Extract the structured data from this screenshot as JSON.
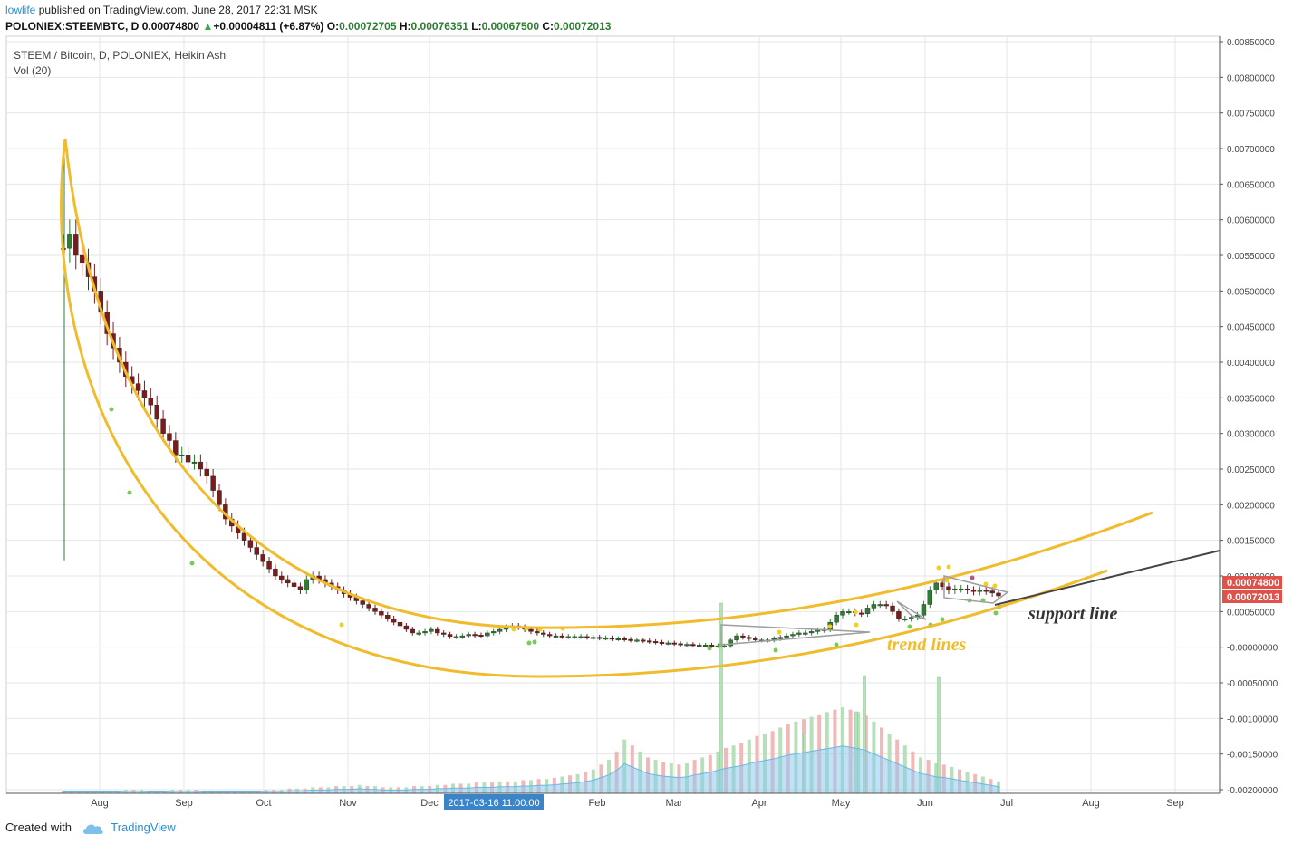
{
  "header": {
    "user": "lowlife",
    "published": "published on TradingView.com, June 28, 2017 22:31 MSK",
    "symbol": "POLONIEX:STEEMBTC, D",
    "last": "0.00074800",
    "change": "+0.00004811 (+6.87%)",
    "o_label": "O:",
    "o": "0.00072705",
    "h_label": "H:",
    "h": "0.00076351",
    "l_label": "L:",
    "l": "0.00067500",
    "c_label": "C:",
    "c": "0.00072013"
  },
  "legend": {
    "title": "STEEM / Bitcoin, D, POLONIEX, Heikin Ashi",
    "volume": "Vol (20)"
  },
  "footer": {
    "created_with": "Created with",
    "brand": "TradingView"
  },
  "colors": {
    "up": "#2e7d32",
    "down": "#7a1c1c",
    "trend": "#f0bc2e",
    "support": "#444444",
    "grid": "#e6e6e6",
    "price_tag": "#e0514a",
    "crosshair_tag": "#3c84c8",
    "volume_up": "#b7dfb9",
    "volume_down": "#f1b8b8",
    "volume_ma": "#8ec9ee"
  },
  "chart_data": {
    "type": "candlestick",
    "title": "STEEM / Bitcoin, D, POLONIEX, Heikin Ashi",
    "x_ticks": [
      "Aug",
      "Sep",
      "Oct",
      "Nov",
      "Dec",
      "2017-03-16 11:00:00",
      "Feb",
      "Mar",
      "Apr",
      "May",
      "Jun",
      "Jul",
      "Aug",
      "Sep"
    ],
    "y_ticks": [
      "0.00850000",
      "0.00800000",
      "0.00750000",
      "0.00700000",
      "0.00650000",
      "0.00600000",
      "0.00550000",
      "0.00500000",
      "0.00450000",
      "0.00400000",
      "0.00350000",
      "0.00300000",
      "0.00250000",
      "0.00200000",
      "0.00150000",
      "0.00100000",
      "0.00050000",
      "-0.00000000",
      "-0.00050000",
      "-0.00100000",
      "-0.00150000",
      "-0.00200000"
    ],
    "ylim": [
      -0.002,
      0.0085
    ],
    "price_tags": [
      "0.00074800",
      "0.00072013"
    ],
    "crosshair_label": "2017-03-16 11:00:00",
    "annotations": [
      "support line",
      "trend lines"
    ],
    "series": [
      {
        "name": "Price",
        "values": [
          0.0056,
          0.0058,
          0.0055,
          0.0054,
          0.0052,
          0.005,
          0.0047,
          0.0044,
          0.0042,
          0.004,
          0.0038,
          0.0037,
          0.0036,
          0.0035,
          0.0034,
          0.0032,
          0.003,
          0.0029,
          0.0027,
          0.0027,
          0.0026,
          0.0026,
          0.0025,
          0.0024,
          0.0022,
          0.002,
          0.0018,
          0.0017,
          0.0016,
          0.0015,
          0.0014,
          0.0013,
          0.0012,
          0.0011,
          0.001,
          0.00095,
          0.0009,
          0.00085,
          0.0008,
          0.00095,
          0.001,
          0.00095,
          0.0009,
          0.00085,
          0.0008,
          0.00075,
          0.0007,
          0.00065,
          0.0006,
          0.00055,
          0.0005,
          0.00045,
          0.0004,
          0.00035,
          0.0003,
          0.00025,
          0.0002,
          0.0002,
          0.00022,
          0.00025,
          0.0002,
          0.00018,
          0.00015,
          0.00015,
          0.00016,
          0.00018,
          0.00017,
          0.00016,
          0.0002,
          0.00022,
          0.00025,
          0.00028,
          0.0003,
          0.00028,
          0.00025,
          0.00022,
          0.0002,
          0.00018,
          0.00016,
          0.00016,
          0.00015,
          0.00015,
          0.00015,
          0.00015,
          0.00014,
          0.00014,
          0.00013,
          0.00013,
          0.00012,
          0.00012,
          0.00011,
          0.0001,
          0.0001,
          9e-05,
          8e-05,
          7e-05,
          6e-05,
          6e-05,
          5e-05,
          4e-05,
          4e-05,
          3e-05,
          3e-05,
          3e-05,
          2e-05,
          2e-05,
          2e-05,
          0.0001,
          0.00016,
          0.00014,
          0.00012,
          0.0001,
          0.0001,
          0.0001,
          0.00012,
          0.00014,
          0.00016,
          0.00018,
          0.0002,
          0.0002,
          0.00022,
          0.00024,
          0.00025,
          0.00035,
          0.00045,
          0.0005,
          0.0005,
          0.00048,
          0.00047,
          0.00055,
          0.0006,
          0.0006,
          0.00058,
          0.0005,
          0.0004,
          0.0004,
          0.00042,
          0.00045,
          0.0006,
          0.0008,
          0.0009,
          0.00085,
          0.0008,
          0.00082,
          0.00082,
          0.0008,
          0.00078,
          0.0008,
          0.00079,
          0.00076,
          0.00072
        ]
      }
    ],
    "volume": [
      2,
      2,
      2,
      2,
      2,
      2,
      2,
      2,
      3,
      3,
      3,
      2,
      2,
      2,
      3,
      3,
      3,
      3,
      2,
      2,
      2,
      2,
      2,
      2,
      2,
      2,
      3,
      3,
      3,
      4,
      4,
      4,
      5,
      5,
      5,
      6,
      6,
      6,
      7,
      6,
      6,
      5,
      5,
      5,
      5,
      6,
      6,
      6,
      7,
      7,
      8,
      8,
      8,
      9,
      9,
      9,
      10,
      10,
      10,
      11,
      11,
      12,
      12,
      13,
      14,
      15,
      16,
      18,
      20,
      24,
      28,
      35,
      45,
      40,
      35,
      30,
      28,
      26,
      25,
      24,
      25,
      28,
      30,
      32,
      35,
      38,
      40,
      42,
      45,
      48,
      50,
      52,
      55,
      58,
      60,
      62,
      64,
      66,
      68,
      70,
      72,
      70,
      68,
      65,
      60,
      55,
      50,
      45,
      40,
      35,
      30,
      28,
      25,
      24,
      22,
      20,
      18,
      16,
      14,
      12,
      10
    ]
  }
}
